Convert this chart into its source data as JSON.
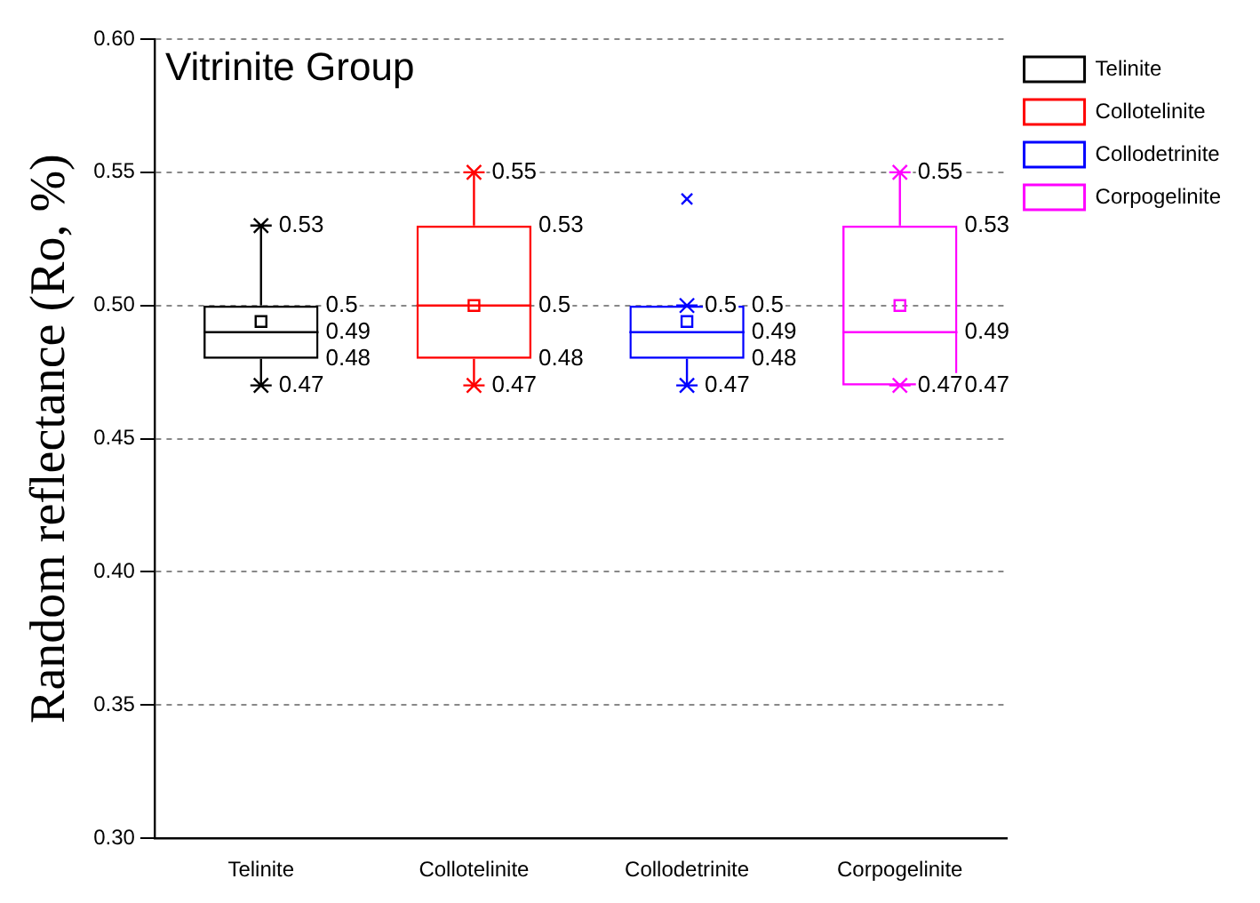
{
  "chart_data": {
    "type": "box",
    "title": "Vitrinite Group",
    "ylabel": "Random reflectance (Ro, %)",
    "categories": [
      "Telinite",
      "Collotelinite",
      "Collodetrinite",
      "Corpogelinite"
    ],
    "series": [
      {
        "name": "Telinite",
        "color": "#000000",
        "boxes": [
          {
            "low": 0.47,
            "q1": 0.48,
            "median": 0.49,
            "q3": 0.5,
            "high": 0.53,
            "mean": 0.494
          },
          null,
          null,
          null
        ]
      },
      {
        "name": "Collotelinite",
        "color": "#ff0000",
        "boxes": [
          null,
          {
            "low": 0.47,
            "q1": 0.48,
            "median": 0.5,
            "q3": 0.53,
            "high": 0.55,
            "mean": 0.5
          },
          null,
          null
        ]
      },
      {
        "name": "Collodetrinite",
        "color": "#0000ff",
        "boxes": [
          null,
          null,
          {
            "low": 0.47,
            "q1": 0.48,
            "median": 0.49,
            "q3": 0.5,
            "high": 0.5,
            "mean": 0.494,
            "outliers": [
              0.54
            ]
          },
          null
        ]
      },
      {
        "name": "Corpogelinite",
        "color": "#ff00ff",
        "boxes": [
          null,
          null,
          null,
          {
            "low": 0.47,
            "q1": 0.47,
            "median": 0.49,
            "q3": 0.53,
            "high": 0.55,
            "mean": 0.5
          }
        ]
      }
    ],
    "ylim": [
      0.3,
      0.6
    ],
    "yticks": [
      {
        "value": 0.3,
        "label": "0.30"
      },
      {
        "value": 0.35,
        "label": "0.35"
      },
      {
        "value": 0.4,
        "label": "0.40"
      },
      {
        "value": 0.45,
        "label": "0.45"
      },
      {
        "value": 0.5,
        "label": "0.50"
      },
      {
        "value": 0.55,
        "label": "0.55"
      },
      {
        "value": 0.6,
        "label": "0.60"
      }
    ],
    "grid": "y",
    "legend": "right",
    "annotations": [
      {
        "text": "0.53",
        "x": "Telinite",
        "y": 0.53
      },
      {
        "text": "0.5",
        "x": "Telinite",
        "y": 0.5
      },
      {
        "text": "0.49",
        "x": "Telinite",
        "y": 0.49
      },
      {
        "text": "0.48",
        "x": "Telinite",
        "y": 0.48
      },
      {
        "text": "0.47",
        "x": "Telinite",
        "y": 0.47
      },
      {
        "text": "0.55",
        "x": "Collotelinite",
        "y": 0.55
      },
      {
        "text": "0.53",
        "x": "Collotelinite",
        "y": 0.53
      },
      {
        "text": "0.5",
        "x": "Collotelinite",
        "y": 0.5
      },
      {
        "text": "0.48",
        "x": "Collotelinite",
        "y": 0.48
      },
      {
        "text": "0.47",
        "x": "Collotelinite",
        "y": 0.47
      },
      {
        "text": "0.5",
        "x": "Collodetrinite",
        "y": 0.5
      },
      {
        "text": "0.5",
        "x": "Collodetrinite",
        "y": 0.5
      },
      {
        "text": "0.49",
        "x": "Collodetrinite",
        "y": 0.49
      },
      {
        "text": "0.48",
        "x": "Collodetrinite",
        "y": 0.48
      },
      {
        "text": "0.47",
        "x": "Collodetrinite",
        "y": 0.47
      },
      {
        "text": "0.55",
        "x": "Corpogelinite",
        "y": 0.55
      },
      {
        "text": "0.53",
        "x": "Corpogelinite",
        "y": 0.53
      },
      {
        "text": "0.49",
        "x": "Corpogelinite",
        "y": 0.49
      },
      {
        "text": "0.47",
        "x": "Corpogelinite",
        "y": 0.47
      },
      {
        "text": "0.47",
        "x": "Corpogelinite",
        "y": 0.47
      }
    ]
  }
}
